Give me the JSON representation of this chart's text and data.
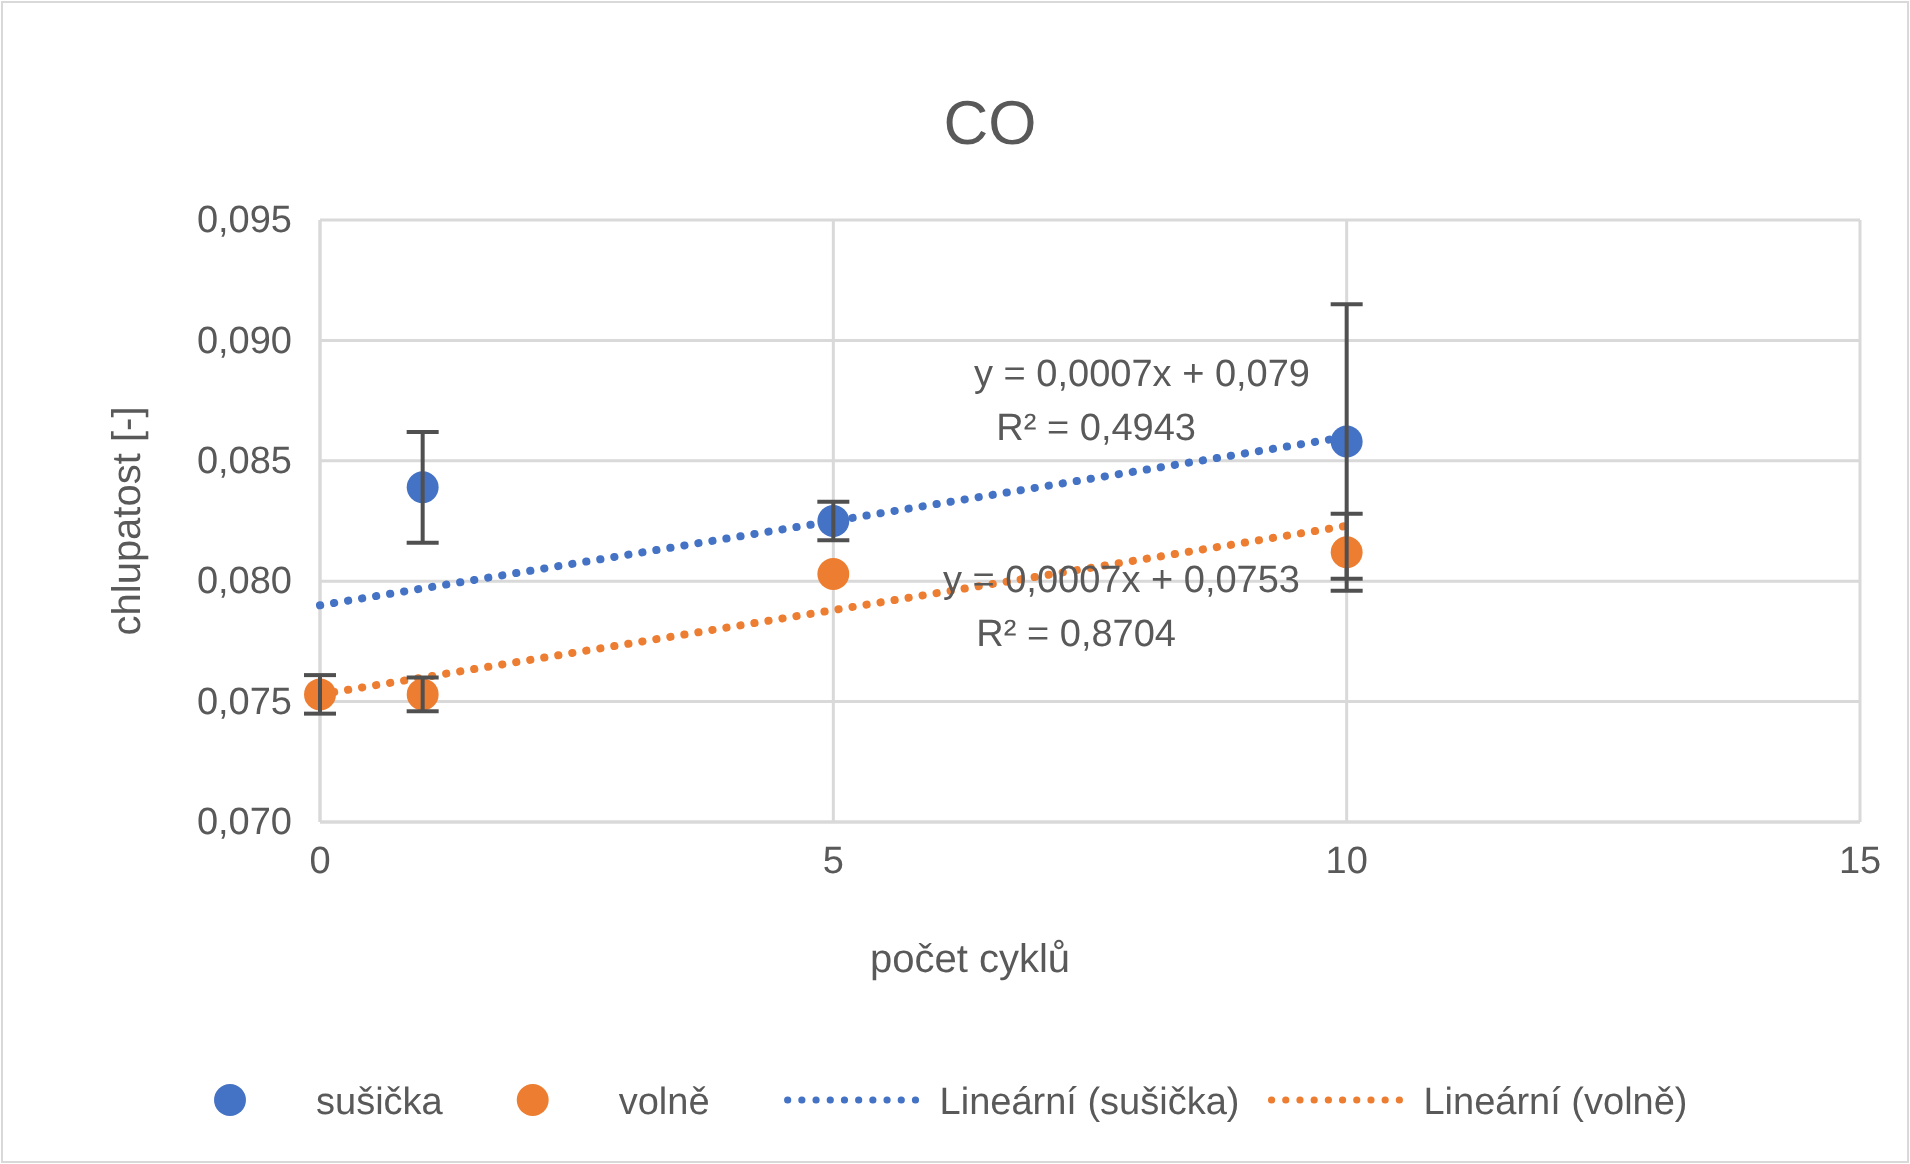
{
  "chart_data": {
    "type": "scatter",
    "title": "CO",
    "xlabel": "počet cyklů",
    "ylabel": "chlupatost [-]",
    "xlim": [
      0,
      15
    ],
    "xticks": [
      0,
      5,
      10,
      15
    ],
    "ylim": [
      0.07,
      0.095
    ],
    "yticks": [
      {
        "value": 0.07,
        "label": "0,070"
      },
      {
        "value": 0.075,
        "label": "0,075"
      },
      {
        "value": 0.08,
        "label": "0,080"
      },
      {
        "value": 0.085,
        "label": "0,085"
      },
      {
        "value": 0.09,
        "label": "0,090"
      },
      {
        "value": 0.095,
        "label": "0,095"
      }
    ],
    "grid": true,
    "legend": "bottom",
    "series": [
      {
        "name": "sušička",
        "marker": "circle",
        "color": "#4472c4",
        "x": [
          1,
          5,
          10
        ],
        "values": [
          0.0839,
          0.0825,
          0.0858
        ],
        "errors": [
          0.0023,
          0.0008,
          0.0057
        ]
      },
      {
        "name": "volně",
        "marker": "circle",
        "color": "#ed7d31",
        "x": [
          0,
          1,
          5,
          10
        ],
        "values": [
          0.0753,
          0.0753,
          0.0803,
          0.0812
        ],
        "errors": [
          0.0008,
          0.0007,
          null,
          0.0016
        ]
      },
      {
        "name": "Lineární (sušička)",
        "type": "line",
        "line_style": "dotted",
        "color": "#4472c4",
        "x": [
          0,
          10
        ],
        "values": [
          0.079,
          0.086
        ]
      },
      {
        "name": "Lineární (volně)",
        "type": "line",
        "line_style": "dotted",
        "color": "#ed7d31",
        "x": [
          0,
          10
        ],
        "values": [
          0.0753,
          0.0823
        ]
      }
    ],
    "annotations": [
      "y = 0,0007x + 0,079",
      "R² = 0,4943",
      "y = 0,0007x + 0,0753",
      "R² = 0,8704"
    ]
  }
}
